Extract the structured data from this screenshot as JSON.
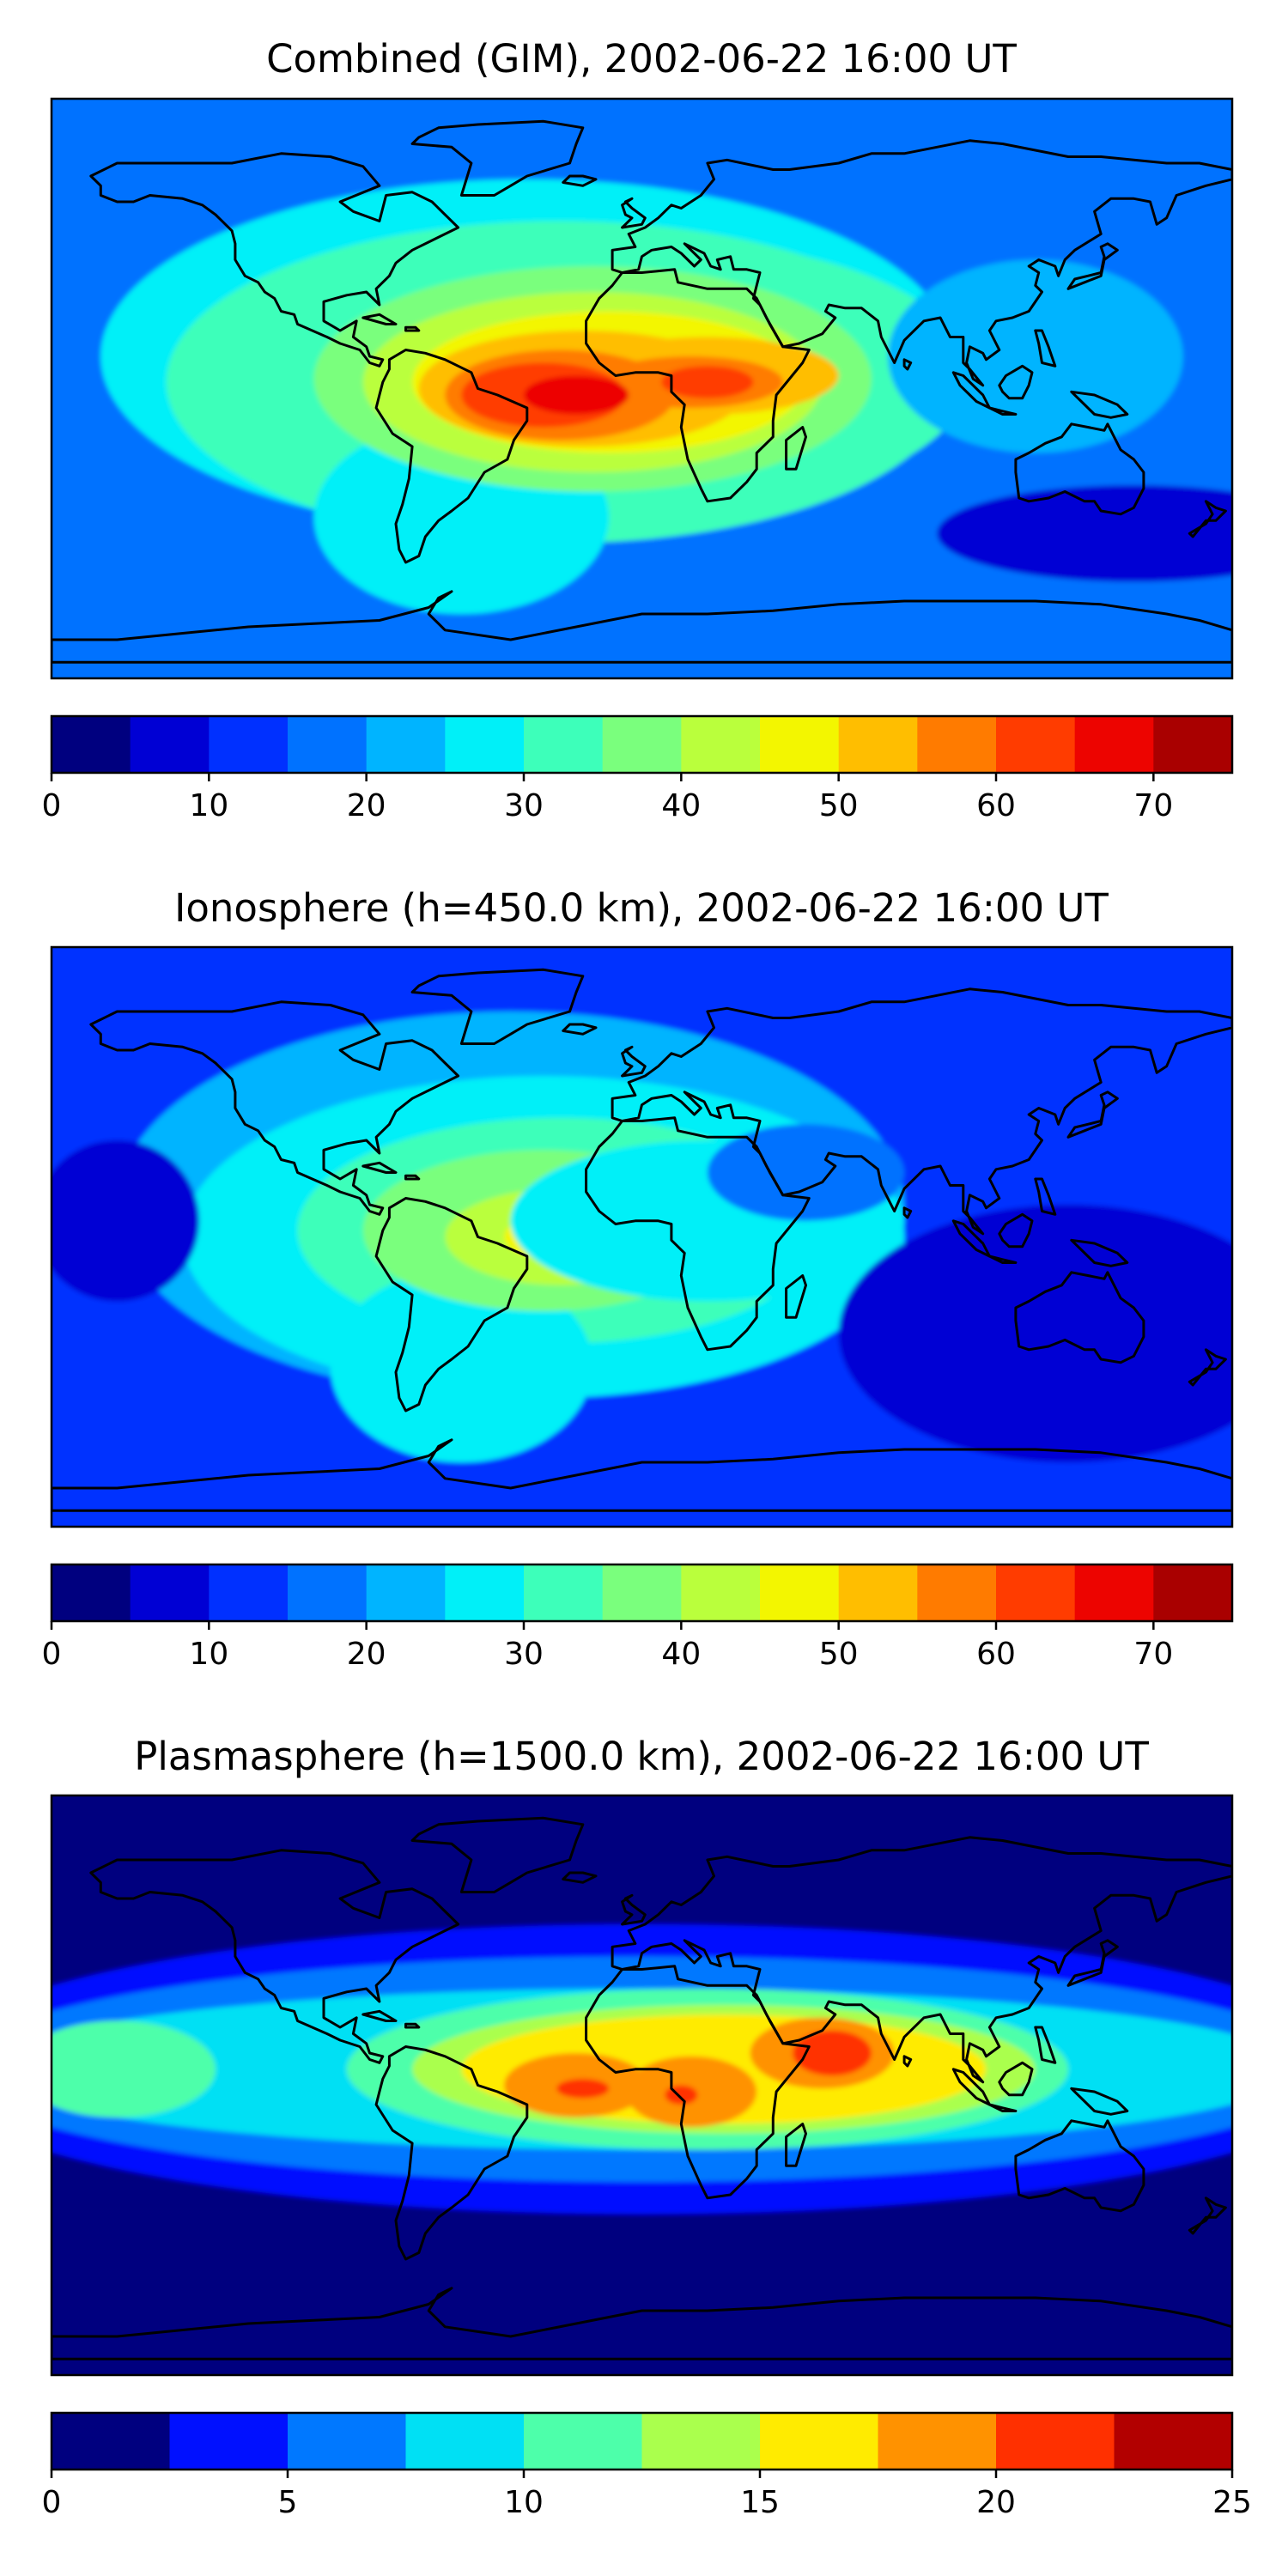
{
  "figure": {
    "panels": [
      {
        "id": "combined",
        "title": "Combined (GIM), 2002-06-22 16:00 UT",
        "colorbar": {
          "min": 0,
          "max": 75,
          "step": 5,
          "tick_values": [
            0,
            10,
            20,
            30,
            40,
            50,
            60,
            70
          ],
          "tick_labels": [
            "0",
            "10",
            "20",
            "30",
            "40",
            "50",
            "60",
            "70"
          ]
        },
        "background_level": 3,
        "features": [
          {
            "lon": -35,
            "lat": 10,
            "rlon": 130,
            "rlat": 55,
            "level": 5
          },
          {
            "lon": -25,
            "lat": 2,
            "rlon": 120,
            "rlat": 50,
            "level": 6
          },
          {
            "lon": 5,
            "lat": 4,
            "rlon": 95,
            "rlat": 42,
            "level": 6
          },
          {
            "lon": -55,
            "lat": -40,
            "rlon": 45,
            "rlat": 30,
            "level": 5
          },
          {
            "lon": -15,
            "lat": 3,
            "rlon": 85,
            "rlat": 35,
            "level": 7
          },
          {
            "lon": -15,
            "lat": 2,
            "rlon": 70,
            "rlat": 28,
            "level": 8
          },
          {
            "lon": -10,
            "lat": 2,
            "rlon": 60,
            "rlat": 22,
            "level": 9
          },
          {
            "lon": -18,
            "lat": 0,
            "rlon": 50,
            "rlat": 18,
            "level": 10
          },
          {
            "lon": 20,
            "lat": 4,
            "rlon": 40,
            "rlat": 12,
            "level": 10
          },
          {
            "lon": -25,
            "lat": -2,
            "rlon": 35,
            "rlat": 14,
            "level": 11
          },
          {
            "lon": 15,
            "lat": 2,
            "rlon": 28,
            "rlat": 8,
            "level": 11
          },
          {
            "lon": -30,
            "lat": -2,
            "rlon": 25,
            "rlat": 10,
            "level": 12
          },
          {
            "lon": -20,
            "lat": -2,
            "rlon": 16,
            "rlat": 6,
            "level": 13
          },
          {
            "lon": 20,
            "lat": 2,
            "rlon": 14,
            "rlat": 5,
            "level": 12
          },
          {
            "lon": 120,
            "lat": 10,
            "rlon": 45,
            "rlat": 30,
            "level": 4
          },
          {
            "lon": 150,
            "lat": -45,
            "rlon": 60,
            "rlat": 15,
            "level": 1
          }
        ]
      },
      {
        "id": "ionosphere",
        "title": "Ionosphere  (h=450.0 km), 2002-06-22 16:00 UT",
        "colorbar": {
          "min": 0,
          "max": 75,
          "step": 5,
          "tick_values": [
            0,
            10,
            20,
            30,
            40,
            50,
            60,
            70
          ],
          "tick_labels": [
            "0",
            "10",
            "20",
            "30",
            "40",
            "50",
            "60",
            "70"
          ]
        },
        "background_level": 2,
        "features": [
          {
            "lon": -40,
            "lat": 10,
            "rlon": 120,
            "rlat": 60,
            "level": 4
          },
          {
            "lon": -30,
            "lat": 0,
            "rlon": 110,
            "rlat": 50,
            "level": 5
          },
          {
            "lon": -25,
            "lat": 2,
            "rlon": 80,
            "rlat": 35,
            "level": 6
          },
          {
            "lon": -55,
            "lat": -40,
            "rlon": 40,
            "rlat": 30,
            "level": 5
          },
          {
            "lon": -30,
            "lat": 2,
            "rlon": 55,
            "rlat": 25,
            "level": 7
          },
          {
            "lon": -25,
            "lat": 0,
            "rlon": 35,
            "rlat": 15,
            "level": 8
          },
          {
            "lon": -22,
            "lat": 0,
            "rlon": 20,
            "rlat": 8,
            "level": 9
          },
          {
            "lon": -10,
            "lat": -1,
            "rlon": 5,
            "rlat": 3,
            "level": 10
          },
          {
            "lon": 20,
            "lat": 5,
            "rlon": 60,
            "rlat": 25,
            "level": 5
          },
          {
            "lon": 50,
            "lat": 20,
            "rlon": 30,
            "rlat": 15,
            "level": 3
          },
          {
            "lon": 130,
            "lat": -30,
            "rlon": 70,
            "rlat": 40,
            "level": 1
          },
          {
            "lon": -160,
            "lat": 5,
            "rlon": 25,
            "rlat": 25,
            "level": 1
          }
        ]
      },
      {
        "id": "plasmasphere",
        "title": "Plasmasphere (h=1500.0 km), 2002-06-22 16:00 UT",
        "colorbar": {
          "min": 0,
          "max": 25,
          "step": 2.5,
          "tick_values": [
            0,
            5,
            10,
            15,
            20,
            25
          ],
          "tick_labels": [
            "0",
            "5",
            "10",
            "15",
            "20",
            "25"
          ]
        },
        "background_level": 0,
        "features": [
          {
            "lon": 0,
            "lat": 5,
            "rlon": 220,
            "rlat": 45,
            "level": 1
          },
          {
            "lon": 0,
            "lat": 5,
            "rlon": 210,
            "rlat": 35,
            "level": 2
          },
          {
            "lon": 0,
            "lat": 5,
            "rlon": 200,
            "rlat": 25,
            "level": 3
          },
          {
            "lon": -160,
            "lat": 5,
            "rlon": 30,
            "rlat": 15,
            "level": 4
          },
          {
            "lon": 20,
            "lat": 5,
            "rlon": 110,
            "rlat": 25,
            "level": 4
          },
          {
            "lon": 25,
            "lat": 5,
            "rlon": 95,
            "rlat": 20,
            "level": 5
          },
          {
            "lon": 25,
            "lat": 5,
            "rlon": 80,
            "rlat": 17,
            "level": 6
          },
          {
            "lon": -20,
            "lat": 0,
            "rlon": 22,
            "rlat": 10,
            "level": 7
          },
          {
            "lon": 15,
            "lat": -2,
            "rlon": 20,
            "rlat": 11,
            "level": 7
          },
          {
            "lon": 55,
            "lat": 10,
            "rlon": 22,
            "rlat": 11,
            "level": 7
          },
          {
            "lon": -18,
            "lat": -1,
            "rlon": 8,
            "rlat": 3,
            "level": 8
          },
          {
            "lon": 12,
            "lat": -3,
            "rlon": 5,
            "rlat": 3,
            "level": 8
          },
          {
            "lon": 58,
            "lat": 10,
            "rlon": 12,
            "rlat": 7,
            "level": 8
          }
        ]
      }
    ],
    "colormap": [
      "#00007f",
      "#0000d4",
      "#0030ff",
      "#0072ff",
      "#00b4ff",
      "#00f0f8",
      "#3dffba",
      "#7aff7d",
      "#baff3c",
      "#f3f600",
      "#ffbe00",
      "#ff7b00",
      "#ff3c00",
      "#ed0400",
      "#a90000"
    ],
    "colormap_plasmasphere": [
      "#00007f",
      "#0010ff",
      "#0078ff",
      "#00e0f4",
      "#4dffaa",
      "#aaff4d",
      "#ffeb00",
      "#ff9200",
      "#ff3000",
      "#b20000"
    ]
  }
}
